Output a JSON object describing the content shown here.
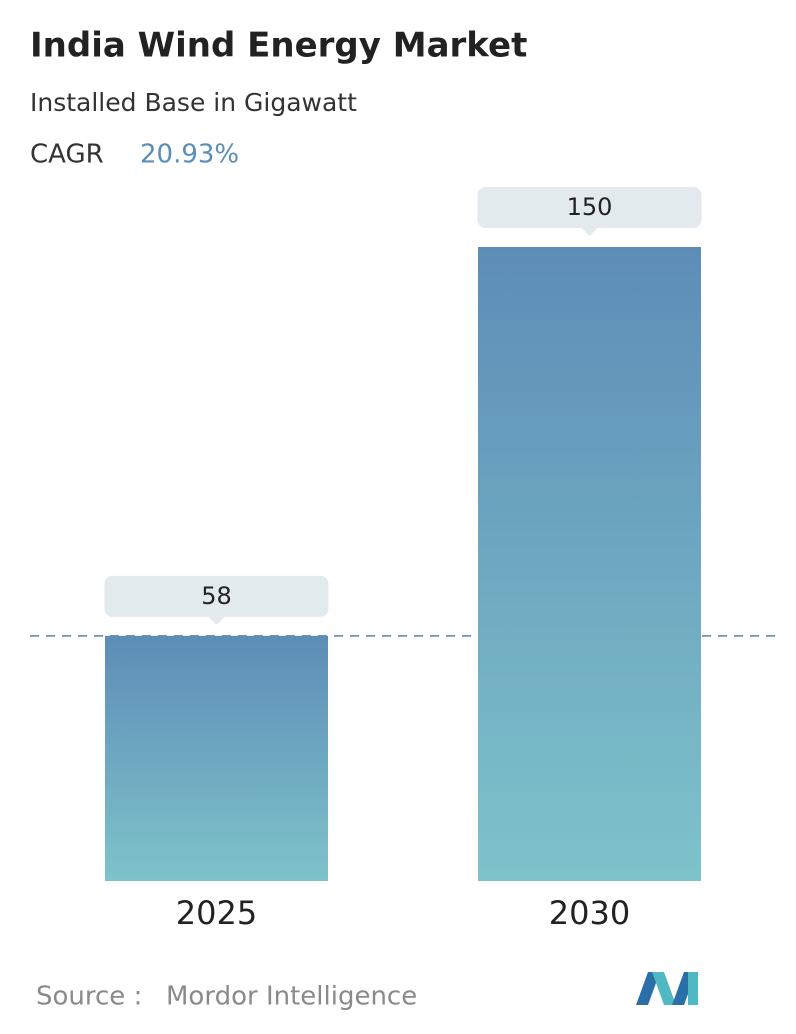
{
  "chart_data": {
    "type": "bar",
    "title": "India Wind Energy Market",
    "subtitle": "Installed Base in Gigawatt",
    "cagr_label": "CAGR",
    "cagr_value": "20.93%",
    "categories": [
      "2025",
      "2030"
    ],
    "values": [
      58,
      150
    ],
    "ylim": [
      0,
      150
    ],
    "gradient": [
      "#5d8db7",
      "#7ec3ca"
    ],
    "reference_line": true,
    "source_label": "Source :",
    "source": "Mordor Intelligence"
  }
}
